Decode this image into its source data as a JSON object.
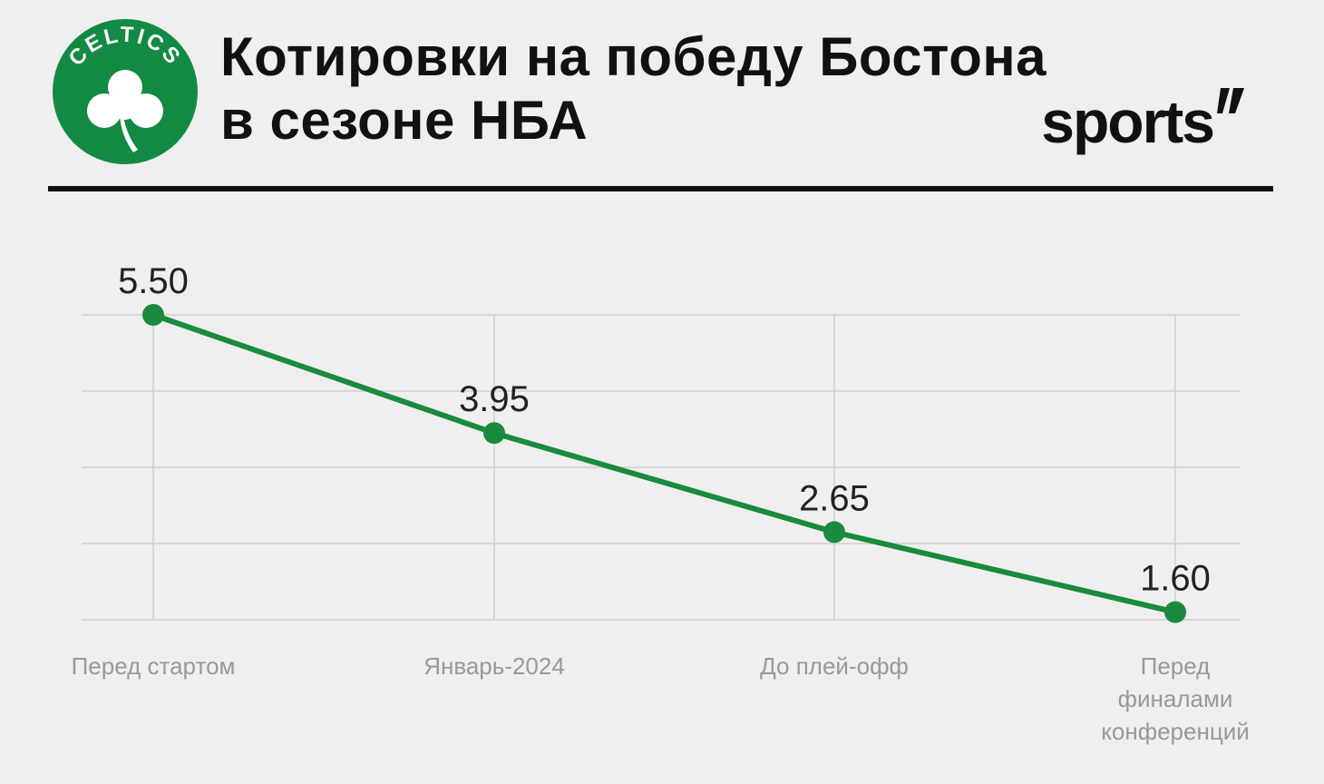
{
  "header": {
    "logo_text": "CELTICS",
    "title": "Котировки на победу Бостона\nв сезоне НБА",
    "brand": "sports"
  },
  "chart_data": {
    "type": "line",
    "categories": [
      "Перед стартом",
      "Январь-2024",
      "До плей-офф",
      "Перед\nфиналами\nконференций"
    ],
    "values": [
      5.5,
      3.95,
      2.65,
      1.6
    ],
    "value_labels": [
      "5.50",
      "3.95",
      "2.65",
      "1.60"
    ],
    "color": "#1a8a3e",
    "ylim": [
      1.5,
      5.5
    ],
    "yticks": [
      1.5,
      2.5,
      3.5,
      4.5,
      5.5
    ],
    "grid": true
  }
}
